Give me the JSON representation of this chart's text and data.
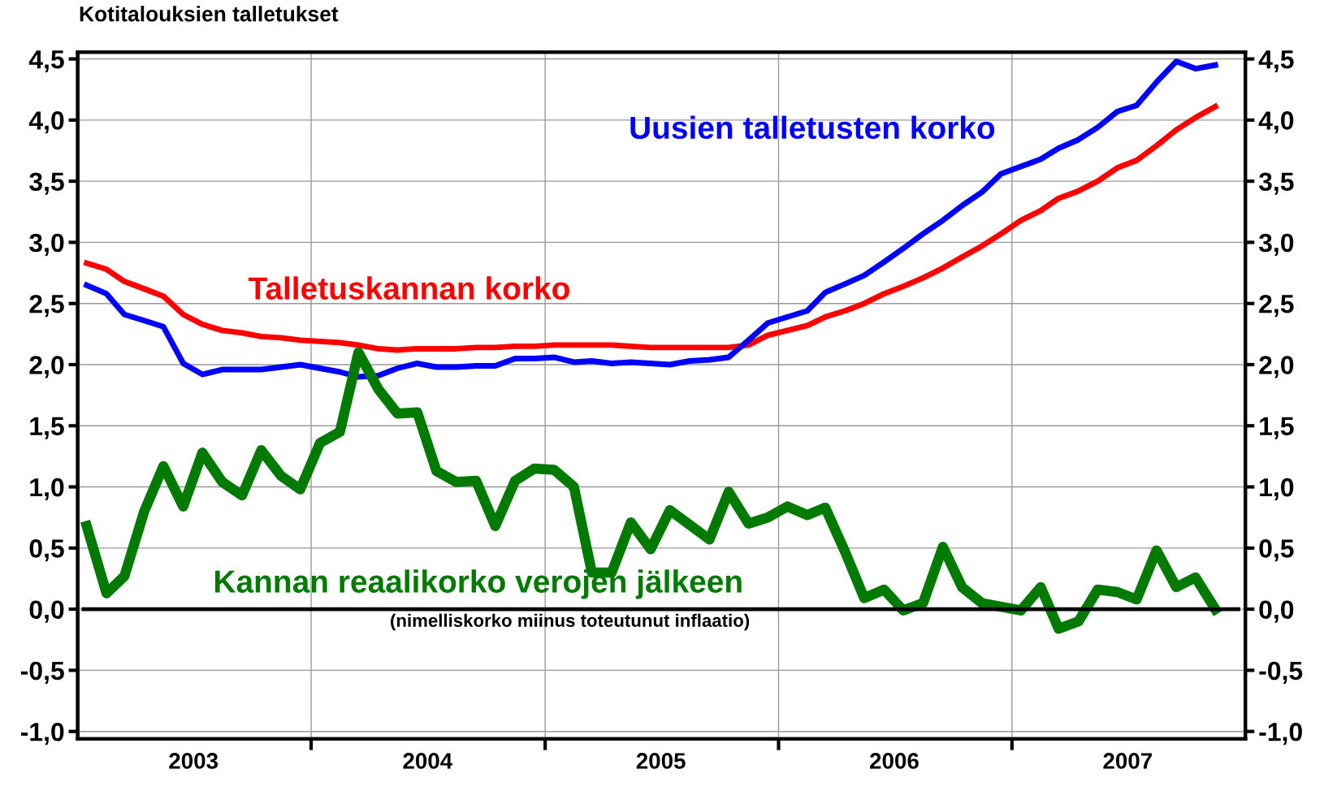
{
  "chart_data": {
    "type": "line",
    "title": "Kotitalouksien talletukset",
    "x": [
      "2003-01-15",
      "2003-02-15",
      "2003-03-15",
      "2003-04-15",
      "2003-05-15",
      "2003-06-15",
      "2003-07-15",
      "2003-08-15",
      "2003-09-15",
      "2003-10-15",
      "2003-11-15",
      "2003-12-15",
      "2004-01-15",
      "2004-02-15",
      "2004-03-15",
      "2004-04-15",
      "2004-05-15",
      "2004-06-15",
      "2004-07-15",
      "2004-08-15",
      "2004-09-15",
      "2004-10-15",
      "2004-11-15",
      "2004-12-15",
      "2005-01-15",
      "2005-02-15",
      "2005-03-15",
      "2005-04-15",
      "2005-05-15",
      "2005-06-15",
      "2005-07-15",
      "2005-08-15",
      "2005-09-15",
      "2005-10-15",
      "2005-11-15",
      "2005-12-15",
      "2006-01-15",
      "2006-02-15",
      "2006-03-15",
      "2006-04-15",
      "2006-05-15",
      "2006-06-15",
      "2006-07-15",
      "2006-08-15",
      "2006-09-15",
      "2006-10-15",
      "2006-11-15",
      "2006-12-15",
      "2007-01-15",
      "2007-02-15",
      "2007-03-15",
      "2007-04-15",
      "2007-05-15",
      "2007-06-15",
      "2007-07-15",
      "2007-08-15",
      "2007-09-15",
      "2007-10-15",
      "2007-11-15"
    ],
    "series": [
      {
        "name": "Talletuskannan korko",
        "color": "#ff0000",
        "values": [
          2.83,
          2.78,
          2.68,
          2.62,
          2.56,
          2.41,
          2.33,
          2.28,
          2.26,
          2.23,
          2.22,
          2.2,
          2.19,
          2.18,
          2.16,
          2.13,
          2.12,
          2.13,
          2.13,
          2.13,
          2.14,
          2.14,
          2.15,
          2.15,
          2.16,
          2.16,
          2.16,
          2.16,
          2.15,
          2.14,
          2.14,
          2.14,
          2.14,
          2.14,
          2.16,
          2.24,
          2.28,
          2.32,
          2.39,
          2.44,
          2.5,
          2.58,
          2.64,
          2.71,
          2.79,
          2.88,
          2.97,
          3.07,
          3.18,
          3.26,
          3.36,
          3.42,
          3.5,
          3.61,
          3.67,
          3.79,
          3.92,
          4.02,
          4.11
        ]
      },
      {
        "name": "Uusien talletusten korko",
        "color": "#0000ff",
        "values": [
          2.65,
          2.58,
          2.41,
          2.36,
          2.31,
          2.01,
          1.92,
          1.96,
          1.96,
          1.96,
          1.98,
          2.0,
          1.97,
          1.94,
          1.9,
          1.91,
          1.97,
          2.01,
          1.98,
          1.98,
          1.99,
          1.99,
          2.05,
          2.05,
          2.06,
          2.02,
          2.03,
          2.01,
          2.02,
          2.01,
          2.0,
          2.03,
          2.04,
          2.06,
          2.2,
          2.34,
          2.39,
          2.44,
          2.59,
          2.66,
          2.73,
          2.84,
          2.95,
          3.07,
          3.18,
          3.3,
          3.41,
          3.56,
          3.62,
          3.68,
          3.77,
          3.84,
          3.94,
          4.07,
          4.12,
          4.31,
          4.48,
          4.42,
          4.45
        ]
      },
      {
        "name": "Kannan reaalikorko verojen jälkeen",
        "color": "#007a00",
        "values": [
          0.68,
          0.13,
          0.27,
          0.8,
          1.17,
          0.84,
          1.28,
          1.04,
          0.93,
          1.3,
          1.09,
          0.98,
          1.36,
          1.45,
          2.1,
          1.8,
          1.6,
          1.61,
          1.13,
          1.04,
          1.05,
          0.68,
          1.05,
          1.15,
          1.14,
          1.0,
          0.3,
          0.3,
          0.71,
          0.49,
          0.81,
          0.69,
          0.57,
          0.96,
          0.7,
          0.75,
          0.84,
          0.77,
          0.83,
          0.47,
          0.09,
          0.16,
          -0.01,
          0.05,
          0.51,
          0.18,
          0.05,
          0.02,
          -0.01,
          0.18,
          -0.16,
          -0.1,
          0.16,
          0.14,
          0.08,
          0.48,
          0.18,
          0.26,
          0.0
        ]
      }
    ],
    "annotations": [
      "(nimelliskorko miinus toteutunut inflaatio)"
    ],
    "ref_lines": [
      {
        "axis": "y",
        "value": 0,
        "color": "#000000"
      }
    ],
    "xlim": [
      "2003-01-01",
      "2008-01-01"
    ],
    "xticks": [
      {
        "value": "2003-07-01",
        "label": "2003"
      },
      {
        "value": "2004-01-01",
        "label": null
      },
      {
        "value": "2004-07-01",
        "label": "2004"
      },
      {
        "value": "2005-01-01",
        "label": null
      },
      {
        "value": "2005-07-01",
        "label": "2005"
      },
      {
        "value": "2006-01-01",
        "label": null
      },
      {
        "value": "2006-07-01",
        "label": "2006"
      },
      {
        "value": "2007-01-01",
        "label": null
      },
      {
        "value": "2007-07-01",
        "label": "2007"
      }
    ],
    "ylim": [
      -1.06,
      4.555
    ],
    "yticks": [
      {
        "value": -1.0,
        "label": "-1,0"
      },
      {
        "value": -0.5,
        "label": "-0,5"
      },
      {
        "value": 0.0,
        "label": "0,0"
      },
      {
        "value": 0.5,
        "label": "0,5"
      },
      {
        "value": 1.0,
        "label": "1,0"
      },
      {
        "value": 1.5,
        "label": "1,5"
      },
      {
        "value": 2.0,
        "label": "2,0"
      },
      {
        "value": 2.5,
        "label": "2,5"
      },
      {
        "value": 3.0,
        "label": "3,0"
      },
      {
        "value": 3.5,
        "label": "3,5"
      },
      {
        "value": 4.0,
        "label": "4,0"
      },
      {
        "value": 4.5,
        "label": "4,5"
      }
    ],
    "y2lim": [
      -1.06,
      4.555
    ],
    "y2ticks": [
      {
        "value": -1.0,
        "label": "-1,0"
      },
      {
        "value": -0.5,
        "label": "-0,5"
      },
      {
        "value": 0.0,
        "label": "0,0"
      },
      {
        "value": 0.5,
        "label": "0,5"
      },
      {
        "value": 1.0,
        "label": "1,0"
      },
      {
        "value": 1.5,
        "label": "1,5"
      },
      {
        "value": 2.0,
        "label": "2,0"
      },
      {
        "value": 2.5,
        "label": "2,5"
      },
      {
        "value": 3.0,
        "label": "3,0"
      },
      {
        "value": 3.5,
        "label": "3,5"
      },
      {
        "value": 4.0,
        "label": "4,0"
      },
      {
        "value": 4.5,
        "label": "4,5"
      }
    ],
    "grid": true
  }
}
